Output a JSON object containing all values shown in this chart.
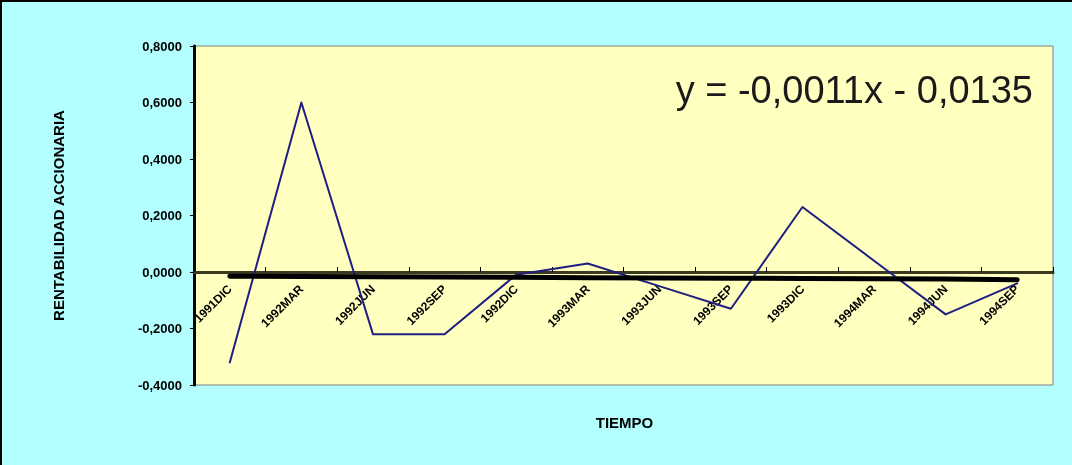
{
  "chart_data": {
    "type": "line",
    "xlabel": "TIEMPO",
    "ylabel": "RENTABILIDAD ACCIONARIA",
    "annotations": [
      "y = -0,0011x - 0,0135"
    ],
    "categories": [
      "1991DIC",
      "1992MAR",
      "1992JUN",
      "1992SEP",
      "1992DIC",
      "1993MAR",
      "1993JUN",
      "1993SEP",
      "1993DIC",
      "1994MAR",
      "1994JUN",
      "1994SEP"
    ],
    "series": [
      {
        "color": "#1f1f80",
        "values": [
          -0.32,
          0.6,
          -0.22,
          -0.22,
          -0.01,
          0.03,
          -0.05,
          -0.13,
          0.23,
          0.04,
          -0.15,
          -0.04
        ]
      },
      {
        "type": "line",
        "color": "#000000",
        "values": [
          -0.015,
          -0.016,
          -0.017,
          -0.018,
          -0.019,
          -0.02,
          -0.021,
          -0.022,
          -0.023,
          -0.024,
          -0.025,
          -0.027
        ]
      }
    ],
    "ylim": [
      -0.4,
      0.8
    ],
    "yticks": [
      {
        "value": -0.4,
        "label": "-0,4000"
      },
      {
        "value": -0.2,
        "label": "-0,2000"
      },
      {
        "value": 0,
        "label": "0,0000"
      },
      {
        "value": 0.2,
        "label": "0,2000"
      },
      {
        "value": 0.4,
        "label": "0,4000"
      },
      {
        "value": 0.6,
        "label": "0,6000"
      },
      {
        "value": 0.8,
        "label": "0,8000"
      }
    ],
    "grid": false,
    "marker": "none"
  }
}
